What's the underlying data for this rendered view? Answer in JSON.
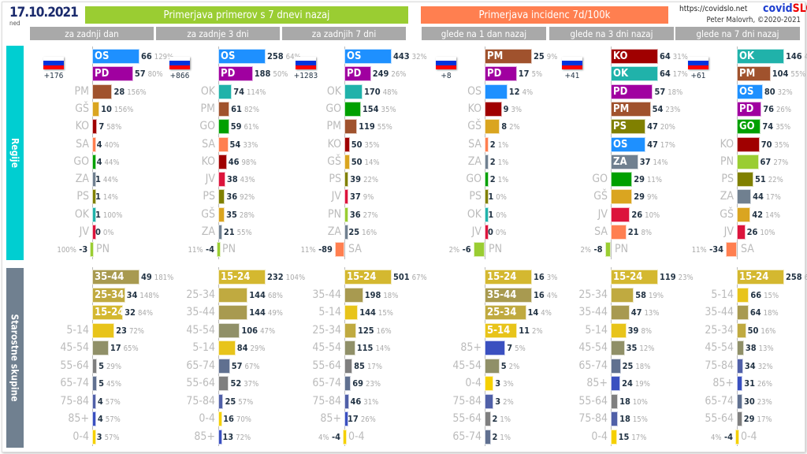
{
  "header": {
    "date": "17.10.2021",
    "day": "ned",
    "title_cases": "Primerjava primerov s 7 dnevi nazaj",
    "title_incidence": "Primerjava incidenc 7d/100k",
    "url": "https://covidslo.net",
    "brand_a": "covid",
    "brand_b": "SLO",
    "author": "Peter Malovrh, ©2020-2021",
    "tabs": [
      "za zadnji dan",
      "za zadnje 3 dni",
      "za zadnjih 7 dni",
      "glede na 1 dan nazaj",
      "glede na 3 dni nazaj",
      "glede na 7 dni nazaj"
    ]
  },
  "colors": {
    "green": "#9acd32",
    "orange": "#ff7f50",
    "tab": "#a9a9a9",
    "regions_side": "#00ced1",
    "ages_side": "#708090",
    "OS": "#1e90ff",
    "PD": "#a000a0",
    "PM": "#a0522d",
    "GŠ": "#daa520",
    "KO": "#a00000",
    "SA": "#ff7f50",
    "GO": "#00a000",
    "ZA": "#708090",
    "PS": "#808000",
    "OK": "#20b2aa",
    "JV": "#dc143c",
    "PN": "#9acd32",
    "15-24": "#d4b830",
    "35-44": "#a89a50",
    "25-34": "#c0aa40",
    "5-14": "#e8c41a",
    "45-54": "#909068",
    "55-64": "#7f7f7f",
    "65-74": "#607090",
    "75-84": "#5060a8",
    "85+": "#3a50c0",
    "0-4": "#f5d000"
  },
  "side_labels": {
    "regions": "Regije",
    "ages": "Starostne skupine"
  },
  "chart_data": {
    "type": "bar",
    "regions": [
      {
        "tab": "za zadnji dan",
        "total_delta": "+176",
        "rows": [
          [
            "OS",
            66,
            "129%"
          ],
          [
            "PD",
            57,
            "80%"
          ],
          [
            "PM",
            28,
            "156%"
          ],
          [
            "GŠ",
            10,
            "156%"
          ],
          [
            "KO",
            7,
            "58%"
          ],
          [
            "SA",
            4,
            "40%"
          ],
          [
            "GO",
            4,
            "44%"
          ],
          [
            "ZA",
            1,
            "44%"
          ],
          [
            "PS",
            1,
            "14%"
          ],
          [
            "OK",
            1,
            "100%"
          ],
          [
            "JV",
            0,
            "0%"
          ],
          [
            "PN",
            -3,
            "100%"
          ]
        ]
      },
      {
        "tab": "za zadnje 3 dni",
        "total_delta": "+866",
        "rows": [
          [
            "OS",
            258,
            "64%"
          ],
          [
            "PD",
            188,
            "50%"
          ],
          [
            "OK",
            74,
            "114%"
          ],
          [
            "PM",
            61,
            "82%"
          ],
          [
            "GO",
            59,
            "61%"
          ],
          [
            "SA",
            54,
            "33%"
          ],
          [
            "KO",
            46,
            "98%"
          ],
          [
            "JV",
            38,
            "43%"
          ],
          [
            "PS",
            36,
            "92%"
          ],
          [
            "GŠ",
            35,
            "28%"
          ],
          [
            "ZA",
            21,
            "55%"
          ],
          [
            "PN",
            -4,
            "11%"
          ]
        ]
      },
      {
        "tab": "za zadnjih 7 dni",
        "total_delta": "+1283",
        "rows": [
          [
            "OS",
            443,
            "32%"
          ],
          [
            "PD",
            249,
            "26%"
          ],
          [
            "OK",
            170,
            "48%"
          ],
          [
            "GO",
            154,
            "35%"
          ],
          [
            "PM",
            119,
            "55%"
          ],
          [
            "KO",
            50,
            "35%"
          ],
          [
            "GŠ",
            50,
            "14%"
          ],
          [
            "PS",
            39,
            "22%"
          ],
          [
            "JV",
            37,
            "9%"
          ],
          [
            "PN",
            36,
            "27%"
          ],
          [
            "ZA",
            25,
            "16%"
          ],
          [
            "SA",
            -89,
            "11%"
          ]
        ]
      },
      {
        "tab": "glede na 1 dan nazaj",
        "total_delta": "+8",
        "rows": [
          [
            "PM",
            25,
            "9%"
          ],
          [
            "PD",
            17,
            "5%"
          ],
          [
            "OS",
            12,
            "4%"
          ],
          [
            "KO",
            9,
            "3%"
          ],
          [
            "GŠ",
            8,
            "2%"
          ],
          [
            "SA",
            2,
            "1%"
          ],
          [
            "ZA",
            2,
            "1%"
          ],
          [
            "GO",
            2,
            "1%"
          ],
          [
            "PS",
            1,
            "0%"
          ],
          [
            "OK",
            1,
            "0%"
          ],
          [
            "JV",
            0,
            "0%"
          ],
          [
            "PN",
            -6,
            "2%"
          ]
        ]
      },
      {
        "tab": "glede na 3 dni nazaj",
        "total_delta": "+41",
        "rows": [
          [
            "KO",
            64,
            "31%"
          ],
          [
            "OK",
            64,
            "17%"
          ],
          [
            "PD",
            57,
            "18%"
          ],
          [
            "PM",
            54,
            "23%"
          ],
          [
            "PS",
            47,
            "20%"
          ],
          [
            "OS",
            47,
            "17%"
          ],
          [
            "ZA",
            37,
            "14%"
          ],
          [
            "GO",
            29,
            "11%"
          ],
          [
            "GŠ",
            29,
            "9%"
          ],
          [
            "JV",
            26,
            "10%"
          ],
          [
            "SA",
            21,
            "8%"
          ],
          [
            "PN",
            -8,
            "2%"
          ]
        ]
      },
      {
        "tab": "glede na 7 dni nazaj",
        "total_delta": "+61",
        "rows": [
          [
            "OK",
            146,
            "49%"
          ],
          [
            "PM",
            104,
            "55%"
          ],
          [
            "OS",
            80,
            "32%"
          ],
          [
            "PD",
            76,
            "26%"
          ],
          [
            "GO",
            74,
            "35%"
          ],
          [
            "KO",
            70,
            "35%"
          ],
          [
            "PN",
            67,
            "27%"
          ],
          [
            "PS",
            51,
            "22%"
          ],
          [
            "ZA",
            44,
            "17%"
          ],
          [
            "GŠ",
            42,
            "14%"
          ],
          [
            "JV",
            26,
            "10%"
          ],
          [
            "SA",
            -34,
            "11%"
          ]
        ]
      }
    ],
    "ages": [
      {
        "rows": [
          [
            "35-44",
            49,
            "181%"
          ],
          [
            "25-34",
            34,
            "148%"
          ],
          [
            "15-24",
            32,
            "84%"
          ],
          [
            "5-14",
            23,
            "72%"
          ],
          [
            "45-54",
            17,
            "65%"
          ],
          [
            "55-64",
            5,
            "29%"
          ],
          [
            "65-74",
            5,
            "45%"
          ],
          [
            "75-84",
            4,
            "57%"
          ],
          [
            "85+",
            4,
            "57%"
          ],
          [
            "0-4",
            3,
            "57%"
          ]
        ]
      },
      {
        "rows": [
          [
            "15-24",
            232,
            "104%"
          ],
          [
            "25-34",
            144,
            "68%"
          ],
          [
            "35-44",
            144,
            "49%"
          ],
          [
            "45-54",
            106,
            "47%"
          ],
          [
            "5-14",
            84,
            "29%"
          ],
          [
            "65-74",
            57,
            "67%"
          ],
          [
            "55-64",
            52,
            "37%"
          ],
          [
            "75-84",
            25,
            "57%"
          ],
          [
            "0-4",
            16,
            "70%"
          ],
          [
            "85+",
            13,
            "72%"
          ]
        ]
      },
      {
        "rows": [
          [
            "15-24",
            501,
            "67%"
          ],
          [
            "35-44",
            198,
            "18%"
          ],
          [
            "5-14",
            144,
            "15%"
          ],
          [
            "25-34",
            125,
            "16%"
          ],
          [
            "45-54",
            115,
            "14%"
          ],
          [
            "55-64",
            85,
            "17%"
          ],
          [
            "65-74",
            69,
            "23%"
          ],
          [
            "75-84",
            46,
            "31%"
          ],
          [
            "85+",
            17,
            "26%"
          ],
          [
            "0-4",
            -4,
            "4%"
          ]
        ]
      },
      {
        "rows": [
          [
            "15-24",
            16,
            "3%"
          ],
          [
            "35-44",
            16,
            "4%"
          ],
          [
            "25-34",
            14,
            "4%"
          ],
          [
            "5-14",
            11,
            "2%"
          ],
          [
            "85+",
            7,
            "5%"
          ],
          [
            "45-54",
            5,
            "2%"
          ],
          [
            "0-4",
            3,
            "3%"
          ],
          [
            "75-84",
            3,
            "2%"
          ],
          [
            "55-64",
            2,
            "1%"
          ],
          [
            "65-74",
            2,
            "1%"
          ]
        ]
      },
      {
        "rows": [
          [
            "15-24",
            119,
            "23%"
          ],
          [
            "25-34",
            58,
            "19%"
          ],
          [
            "35-44",
            47,
            "13%"
          ],
          [
            "5-14",
            39,
            "8%"
          ],
          [
            "45-54",
            35,
            "12%"
          ],
          [
            "65-74",
            25,
            "18%"
          ],
          [
            "85+",
            24,
            "19%"
          ],
          [
            "55-64",
            18,
            "10%"
          ],
          [
            "75-84",
            18,
            "15%"
          ],
          [
            "0-4",
            15,
            "17%"
          ]
        ]
      },
      {
        "rows": [
          [
            "15-24",
            258,
            "67%"
          ],
          [
            "5-14",
            66,
            "15%"
          ],
          [
            "35-44",
            64,
            "18%"
          ],
          [
            "25-34",
            50,
            "16%"
          ],
          [
            "45-54",
            38,
            "13%"
          ],
          [
            "75-84",
            34,
            "32%"
          ],
          [
            "85+",
            31,
            "26%"
          ],
          [
            "65-74",
            30,
            "23%"
          ],
          [
            "55-64",
            29,
            "17%"
          ],
          [
            "0-4",
            -4,
            "4%"
          ]
        ]
      }
    ]
  }
}
